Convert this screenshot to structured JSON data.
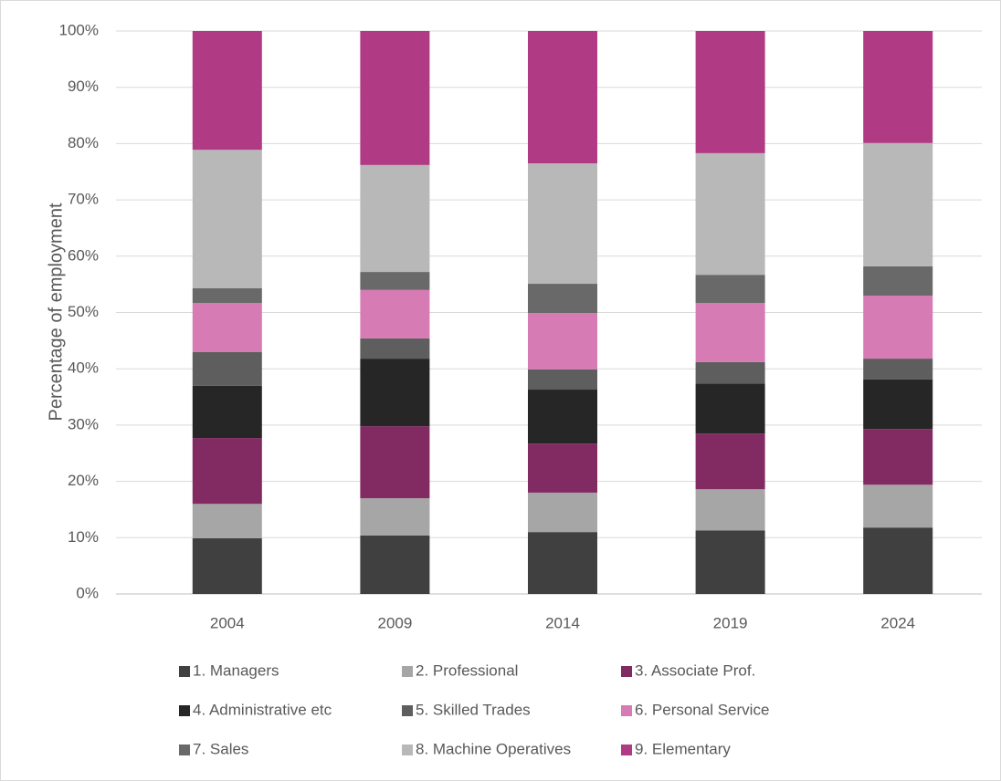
{
  "chart_data": {
    "type": "stacked_bar",
    "y_axis_label": "Percentage of employment",
    "categories": [
      "2004",
      "2009",
      "2014",
      "2019",
      "2024"
    ],
    "ylim": [
      0,
      100
    ],
    "yticks": [
      {
        "value": 0,
        "label": "0%"
      },
      {
        "value": 10,
        "label": "10%"
      },
      {
        "value": 20,
        "label": "20%"
      },
      {
        "value": 30,
        "label": "30%"
      },
      {
        "value": 40,
        "label": "40%"
      },
      {
        "value": 50,
        "label": "50%"
      },
      {
        "value": 60,
        "label": "60%"
      },
      {
        "value": 70,
        "label": "70%"
      },
      {
        "value": 80,
        "label": "80%"
      },
      {
        "value": 90,
        "label": "90%"
      },
      {
        "value": 100,
        "label": "100%"
      }
    ],
    "grid": true,
    "series": [
      {
        "name": "1. Managers",
        "color": "#404040",
        "values": [
          9.9,
          10.4,
          11.0,
          11.3,
          11.8
        ]
      },
      {
        "name": "2. Professional",
        "color": "#a6a6a6",
        "values": [
          6.1,
          6.6,
          7.0,
          7.3,
          7.6
        ]
      },
      {
        "name": "3. Associate Prof.",
        "color": "#822a62",
        "values": [
          11.7,
          12.8,
          8.7,
          9.9,
          9.9
        ]
      },
      {
        "name": "4. Administrative etc",
        "color": "#262626",
        "values": [
          9.3,
          12.0,
          9.6,
          8.9,
          8.8
        ]
      },
      {
        "name": "5. Skilled Trades",
        "color": "#5e5e5e",
        "values": [
          6.0,
          3.6,
          3.6,
          3.8,
          3.7
        ]
      },
      {
        "name": "6. Personal Service",
        "color": "#d67bb4",
        "values": [
          8.7,
          8.6,
          10.0,
          10.5,
          11.2
        ]
      },
      {
        "name": "7. Sales",
        "color": "#696969",
        "values": [
          2.6,
          3.2,
          5.2,
          5.0,
          5.2
        ]
      },
      {
        "name": "8. Machine Operatives",
        "color": "#b8b8b8",
        "values": [
          24.6,
          19.0,
          21.4,
          21.6,
          21.9
        ]
      },
      {
        "name": "9. Elementary",
        "color": "#b03a84",
        "values": [
          21.1,
          23.8,
          23.5,
          21.7,
          19.9
        ]
      }
    ]
  }
}
